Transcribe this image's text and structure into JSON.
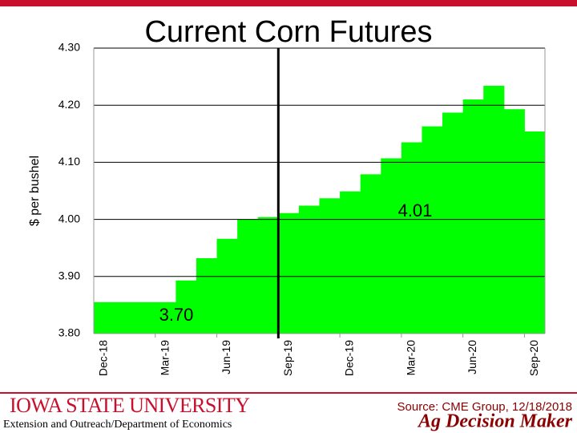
{
  "chart_data": {
    "type": "bar",
    "title": "Current Corn Futures",
    "y_label": "$ per bushel",
    "categories": [
      "Dec-18",
      null,
      null,
      "Mar-19",
      null,
      null,
      "Jun-19",
      null,
      null,
      "Sep-19",
      null,
      null,
      "Dec-19",
      null,
      null,
      "Mar-20",
      null,
      null,
      "Jun-20",
      null,
      null,
      "Sep-20"
    ],
    "values": [
      3.855,
      3.855,
      3.855,
      3.855,
      3.893,
      3.932,
      3.966,
      4.0,
      4.004,
      4.011,
      4.024,
      4.037,
      4.049,
      4.079,
      4.107,
      4.135,
      4.163,
      4.187,
      4.21,
      4.234,
      4.193,
      4.154
    ],
    "color": "#00ff00",
    "ylim": [
      3.8,
      4.3
    ],
    "yticks": [
      {
        "value": 3.8,
        "label": "3.80"
      },
      {
        "value": 3.9,
        "label": "3.90"
      },
      {
        "value": 4.0,
        "label": "4.00"
      },
      {
        "value": 4.1,
        "label": "4.10"
      },
      {
        "value": 4.2,
        "label": "4.20"
      },
      {
        "value": 4.3,
        "label": "4.30"
      }
    ],
    "grid": true,
    "annotations": [
      {
        "text": "3.70"
      },
      {
        "text": "4.01"
      }
    ]
  },
  "footer": {
    "university": "Iowa State University",
    "department": "Extension and Outreach/Department of Economics",
    "source": "Source: CME Group, 12/18/2018",
    "brand": "Ag Decision Maker"
  }
}
